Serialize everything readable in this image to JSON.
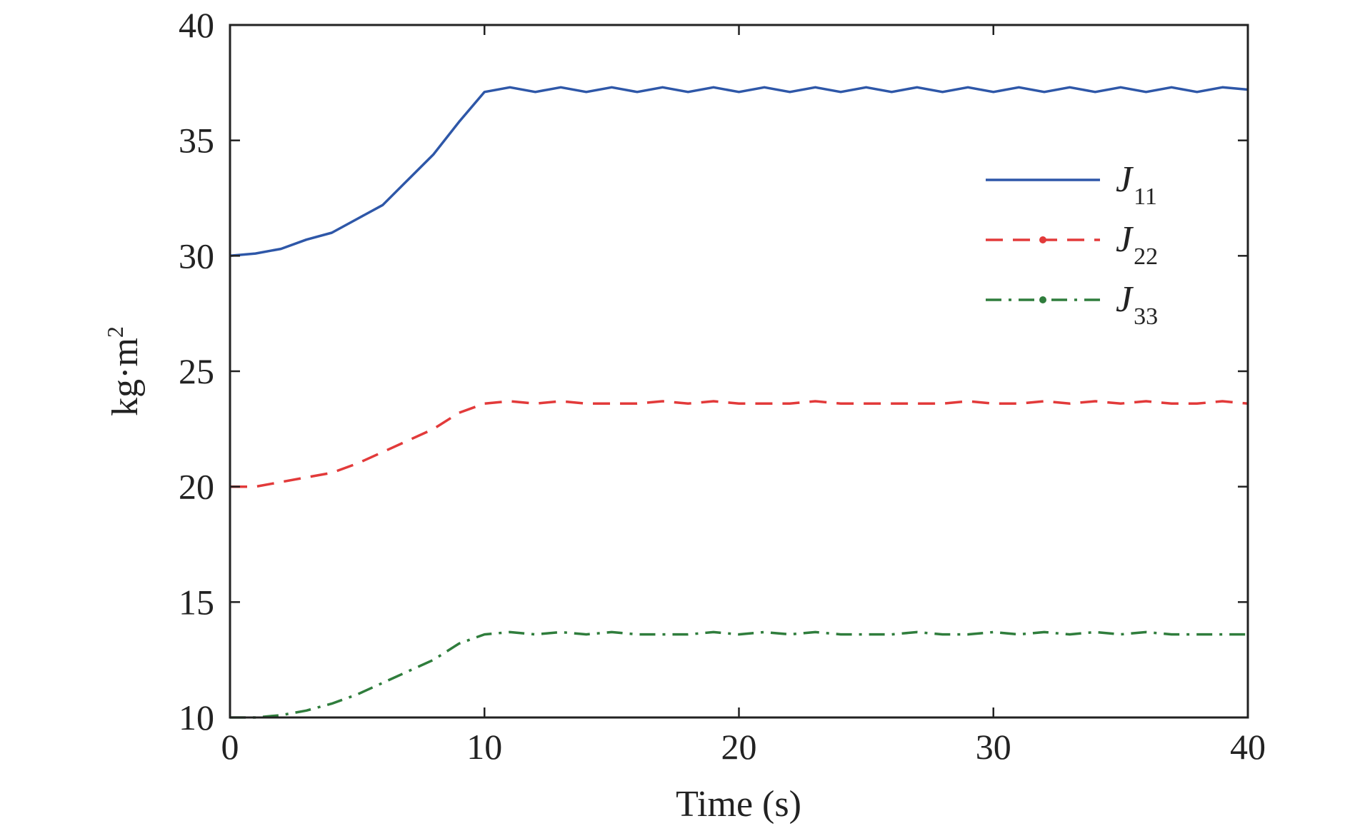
{
  "chart_data": {
    "type": "line",
    "title": "",
    "xlabel": "Time (s)",
    "ylabel": "kg·m",
    "ylabel_sup": "2",
    "xlim": [
      0,
      40
    ],
    "ylim": [
      10,
      40
    ],
    "xticks": [
      0,
      10,
      20,
      30,
      40
    ],
    "yticks": [
      10,
      15,
      20,
      25,
      30,
      35,
      40
    ],
    "grid": false,
    "legend_position": "top-right",
    "series": [
      {
        "name": "J",
        "subscript": "11",
        "color": "#2e57a8",
        "dash": "solid",
        "x": [
          0,
          1,
          2,
          3,
          4,
          5,
          6,
          7,
          8,
          9,
          10,
          11,
          12,
          13,
          14,
          15,
          16,
          17,
          18,
          19,
          20,
          21,
          22,
          23,
          24,
          25,
          26,
          27,
          28,
          29,
          30,
          31,
          32,
          33,
          34,
          35,
          36,
          37,
          38,
          39,
          40
        ],
        "y": [
          30.0,
          30.1,
          30.3,
          30.7,
          31.0,
          31.6,
          32.2,
          33.3,
          34.4,
          35.8,
          37.1,
          37.3,
          37.1,
          37.3,
          37.1,
          37.3,
          37.1,
          37.3,
          37.1,
          37.3,
          37.1,
          37.3,
          37.1,
          37.3,
          37.1,
          37.3,
          37.1,
          37.3,
          37.1,
          37.3,
          37.1,
          37.3,
          37.1,
          37.3,
          37.1,
          37.3,
          37.1,
          37.3,
          37.1,
          37.3,
          37.2
        ]
      },
      {
        "name": "J",
        "subscript": "22",
        "color": "#e23a3a",
        "dash": "dashed",
        "x": [
          0,
          1,
          2,
          3,
          4,
          5,
          6,
          7,
          8,
          9,
          10,
          11,
          12,
          13,
          14,
          15,
          16,
          17,
          18,
          19,
          20,
          21,
          22,
          23,
          24,
          25,
          26,
          27,
          28,
          29,
          30,
          31,
          32,
          33,
          34,
          35,
          36,
          37,
          38,
          39,
          40
        ],
        "y": [
          20.0,
          20.0,
          20.2,
          20.4,
          20.6,
          21.0,
          21.5,
          22.0,
          22.5,
          23.2,
          23.6,
          23.7,
          23.6,
          23.7,
          23.6,
          23.6,
          23.6,
          23.7,
          23.6,
          23.7,
          23.6,
          23.6,
          23.6,
          23.7,
          23.6,
          23.6,
          23.6,
          23.6,
          23.6,
          23.7,
          23.6,
          23.6,
          23.7,
          23.6,
          23.7,
          23.6,
          23.7,
          23.6,
          23.6,
          23.7,
          23.6
        ]
      },
      {
        "name": "J",
        "subscript": "33",
        "color": "#2f7d3c",
        "dash": "dashdot",
        "x": [
          0,
          1,
          2,
          3,
          4,
          5,
          6,
          7,
          8,
          9,
          10,
          11,
          12,
          13,
          14,
          15,
          16,
          17,
          18,
          19,
          20,
          21,
          22,
          23,
          24,
          25,
          26,
          27,
          28,
          29,
          30,
          31,
          32,
          33,
          34,
          35,
          36,
          37,
          38,
          39,
          40
        ],
        "y": [
          10.0,
          10.0,
          10.1,
          10.3,
          10.6,
          11.0,
          11.5,
          12.0,
          12.5,
          13.2,
          13.6,
          13.7,
          13.6,
          13.7,
          13.6,
          13.7,
          13.6,
          13.6,
          13.6,
          13.7,
          13.6,
          13.7,
          13.6,
          13.7,
          13.6,
          13.6,
          13.6,
          13.7,
          13.6,
          13.6,
          13.7,
          13.6,
          13.7,
          13.6,
          13.7,
          13.6,
          13.7,
          13.6,
          13.6,
          13.6,
          13.6
        ]
      }
    ]
  }
}
